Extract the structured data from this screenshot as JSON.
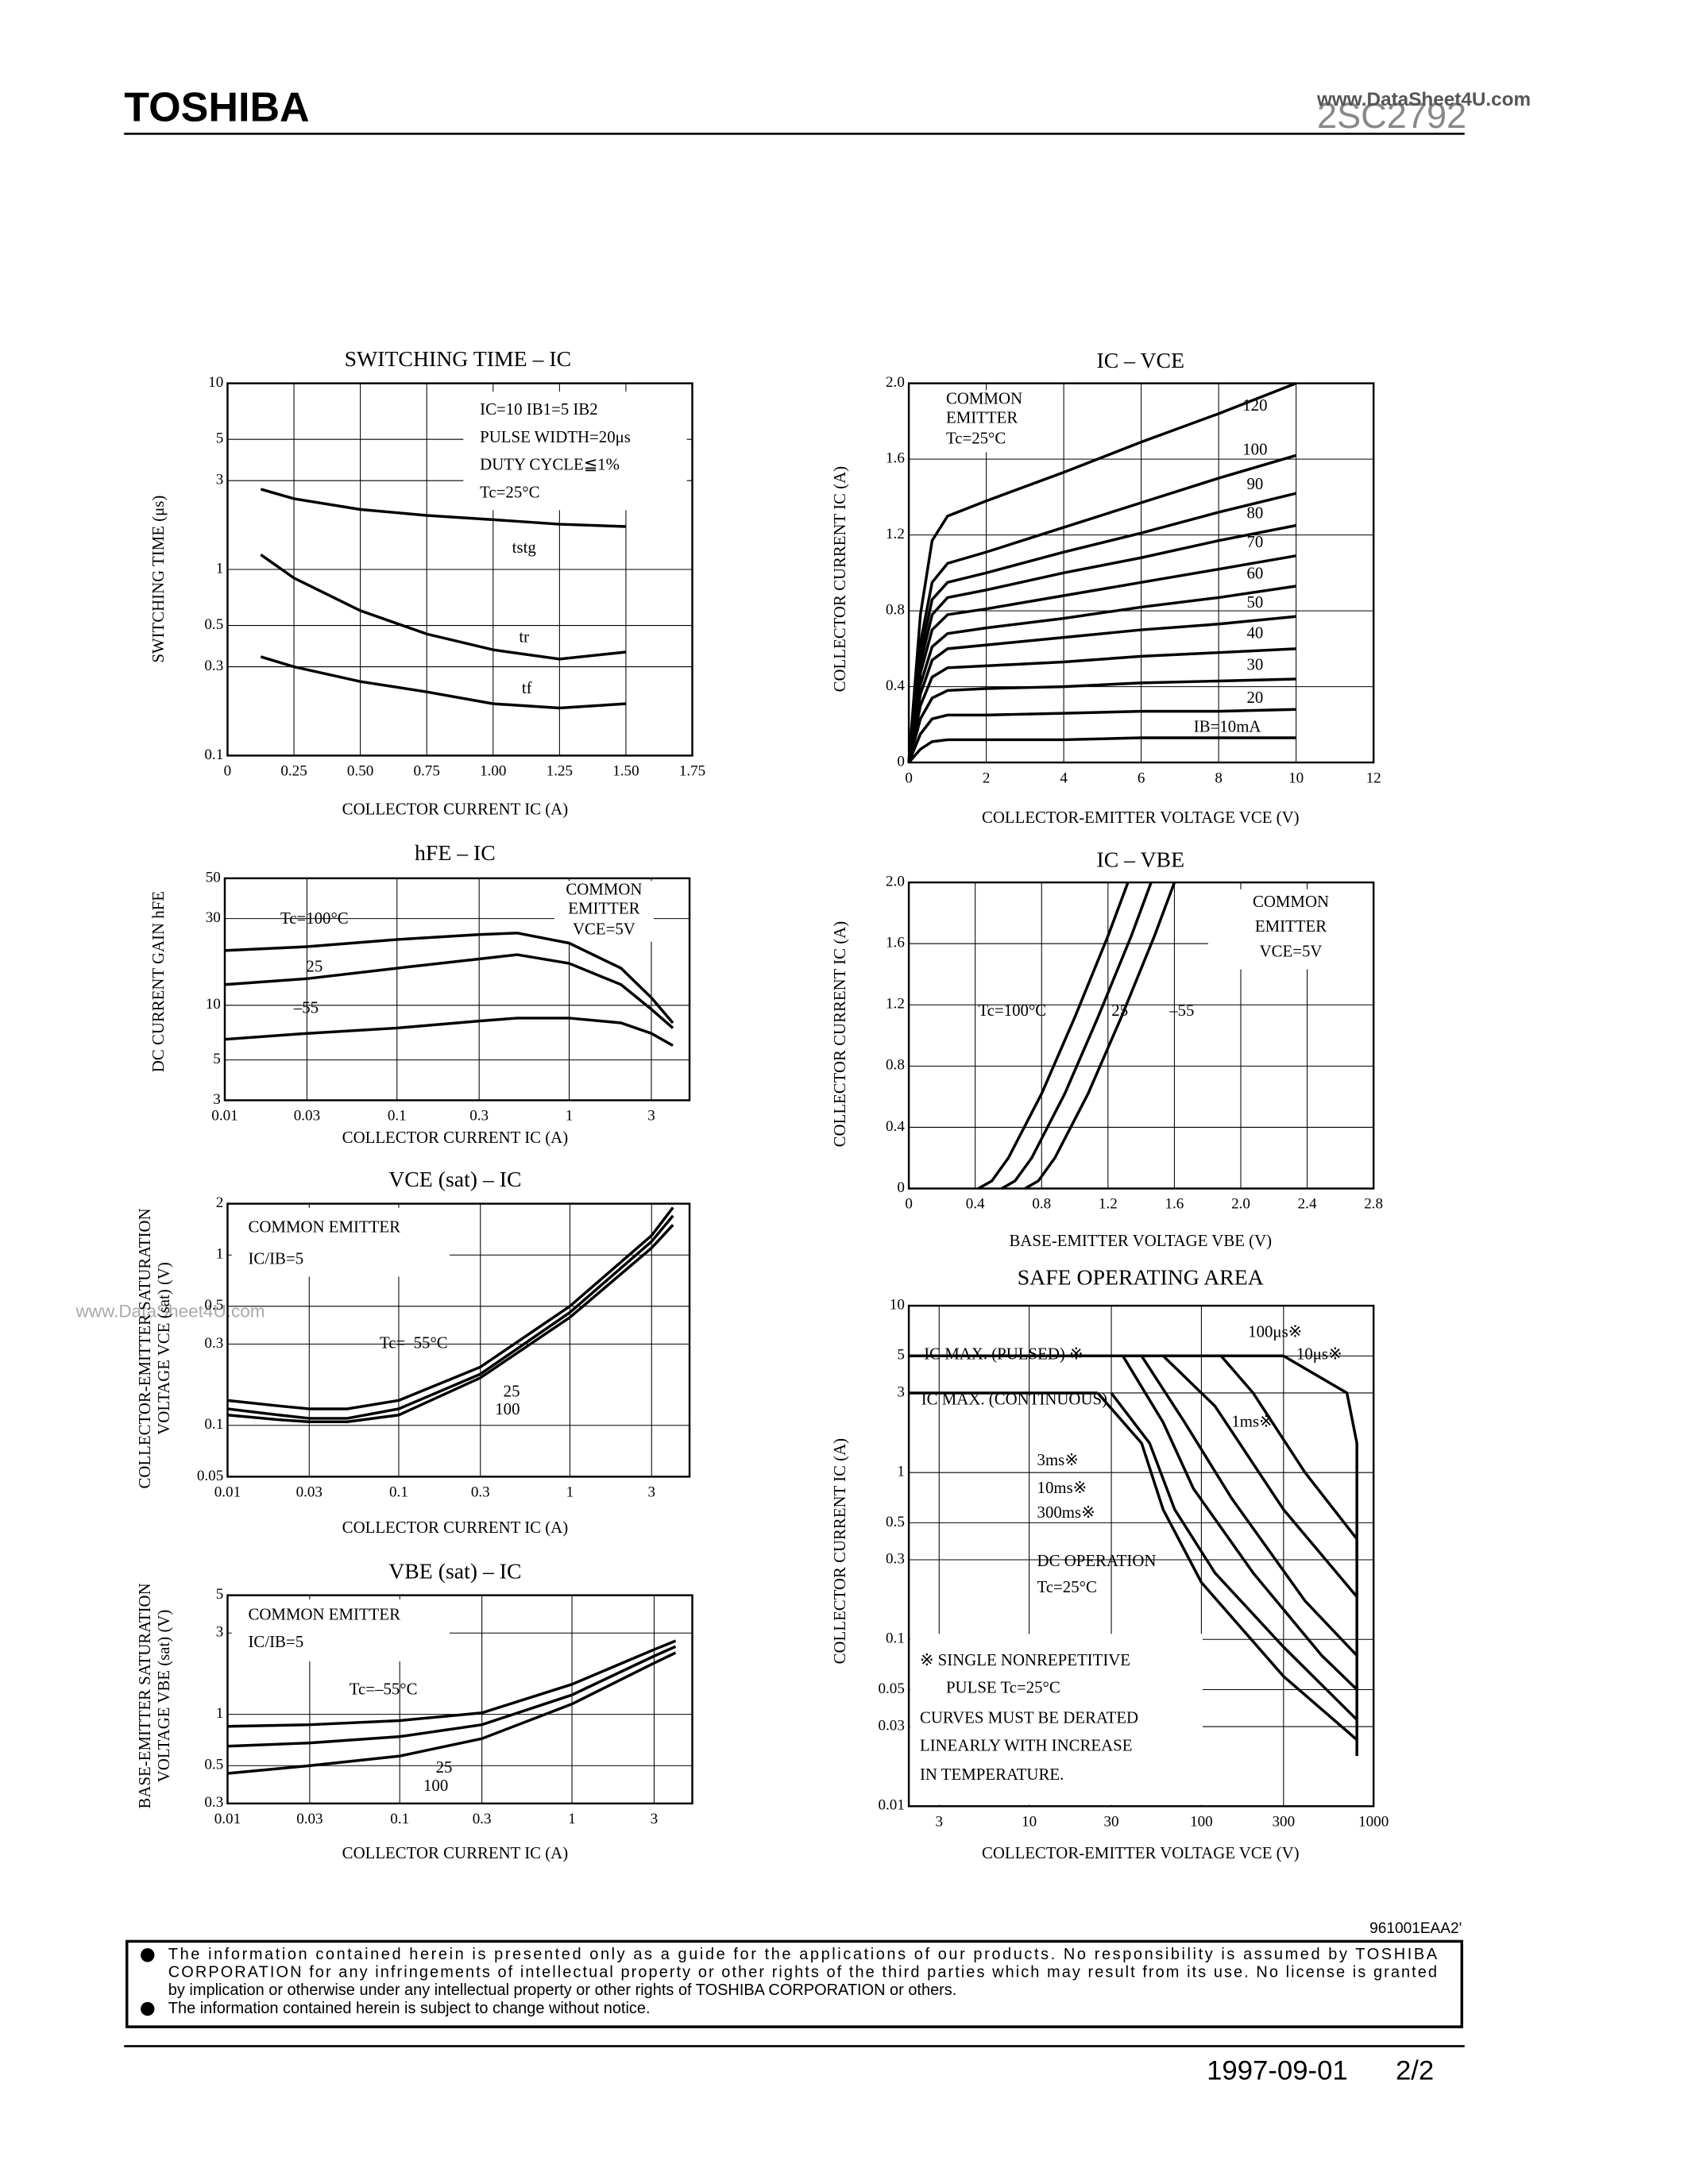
{
  "header": {
    "brand": "TOSHIBA",
    "part": "2SC2792",
    "watermark": "www.DataSheet4U.com"
  },
  "side_watermark": "www.DataSheet4U.com",
  "chart_data": [
    {
      "type": "line",
      "title": "SWITCHING TIME – IC",
      "xlabel": "COLLECTOR CURRENT  IC  (A)",
      "ylabel": "SWITCHING TIME  (μs)",
      "ylog": true,
      "xlim": [
        0,
        1.75
      ],
      "ylim": [
        0.1,
        10
      ],
      "xticks": [
        0,
        0.25,
        {
          "value": 0.5,
          "label": "0.50"
        },
        0.75,
        {
          "value": 1,
          "label": "1.00"
        },
        1.25,
        {
          "value": 1.5,
          "label": "1.50"
        },
        1.75
      ],
      "yticks": [
        0.1,
        0.3,
        0.5,
        1,
        3,
        5,
        10
      ],
      "grid": true,
      "color": "#000000",
      "x": [
        0.125,
        0.25,
        0.5,
        0.75,
        1.0,
        1.25,
        1.5
      ],
      "series": [
        {
          "name": "tstg",
          "values": [
            2.7,
            2.4,
            2.1,
            1.95,
            1.85,
            1.75,
            1.7
          ]
        },
        {
          "name": "tr",
          "values": [
            1.2,
            0.9,
            0.6,
            0.45,
            0.37,
            0.33,
            0.36
          ]
        },
        {
          "name": "tf",
          "values": [
            0.34,
            0.3,
            0.25,
            0.22,
            0.19,
            0.18,
            0.19
          ]
        }
      ],
      "annotations": [
        "IC=10 IB1=5 IB2",
        "PULSE WIDTH=20μs",
        "DUTY CYCLE≦1%",
        "Tc=25°C"
      ]
    },
    {
      "type": "line",
      "title": "IC – VCE",
      "xlabel": "COLLECTOR-EMITTER VOLTAGE  VCE  (V)",
      "ylabel": "COLLECTOR CURRENT  IC  (A)",
      "xlim": [
        0,
        12
      ],
      "ylim": [
        0,
        2
      ],
      "xticks": [
        0,
        2,
        4,
        6,
        8,
        10,
        12
      ],
      "yticks": [
        0,
        0.4,
        0.8,
        1.2,
        1.6,
        {
          "value": 2,
          "label": "2.0"
        }
      ],
      "grid": true,
      "color": "#000000",
      "x": [
        0,
        0.3,
        0.6,
        1,
        2,
        4,
        6,
        8,
        10
      ],
      "series": [
        {
          "name": "120",
          "values": [
            0,
            0.78,
            1.17,
            1.3,
            1.38,
            1.53,
            1.69,
            1.84,
            2.0
          ]
        },
        {
          "name": "100",
          "values": [
            0,
            0.63,
            0.95,
            1.05,
            1.11,
            1.24,
            1.37,
            1.5,
            1.62
          ]
        },
        {
          "name": "90",
          "values": [
            0,
            0.57,
            0.86,
            0.95,
            1.0,
            1.11,
            1.21,
            1.32,
            1.42
          ]
        },
        {
          "name": "80",
          "values": [
            0,
            0.52,
            0.78,
            0.87,
            0.91,
            1.0,
            1.08,
            1.17,
            1.25
          ]
        },
        {
          "name": "70",
          "values": [
            0,
            0.47,
            0.7,
            0.78,
            0.81,
            0.88,
            0.95,
            1.02,
            1.09
          ]
        },
        {
          "name": "60",
          "values": [
            0,
            0.41,
            0.61,
            0.68,
            0.71,
            0.76,
            0.82,
            0.87,
            0.93
          ]
        },
        {
          "name": "50",
          "values": [
            0,
            0.36,
            0.54,
            0.6,
            0.62,
            0.66,
            0.7,
            0.73,
            0.77
          ]
        },
        {
          "name": "40",
          "values": [
            0,
            0.3,
            0.45,
            0.5,
            0.51,
            0.53,
            0.56,
            0.58,
            0.6
          ]
        },
        {
          "name": "30",
          "values": [
            0,
            0.23,
            0.34,
            0.38,
            0.39,
            0.4,
            0.42,
            0.43,
            0.44
          ]
        },
        {
          "name": "20",
          "values": [
            0,
            0.15,
            0.23,
            0.25,
            0.25,
            0.26,
            0.27,
            0.27,
            0.28
          ]
        },
        {
          "name": "IB=10mA",
          "values": [
            0,
            0.07,
            0.11,
            0.12,
            0.12,
            0.12,
            0.13,
            0.13,
            0.13
          ]
        }
      ],
      "annotations": [
        "COMMON",
        "EMITTER",
        "Tc=25°C"
      ]
    },
    {
      "type": "line",
      "title": "hFE – IC",
      "xlabel": "COLLECTOR CURRENT  IC  (A)",
      "ylabel": "DC CURRENT GAIN  hFE",
      "xlog": true,
      "ylog": true,
      "xlim": [
        0.01,
        5
      ],
      "ylim": [
        3,
        50
      ],
      "xticks": [
        0.01,
        0.03,
        0.1,
        0.3,
        1,
        3
      ],
      "yticks": [
        3,
        5,
        10,
        30,
        50
      ],
      "grid": true,
      "color": "#000000",
      "x": [
        0.01,
        0.03,
        0.1,
        0.3,
        0.5,
        1,
        2,
        3,
        4
      ],
      "series": [
        {
          "name": "Tc=100°C",
          "values": [
            20,
            21,
            23,
            24.5,
            25,
            22,
            16,
            11,
            8
          ]
        },
        {
          "name": "25",
          "values": [
            13,
            14,
            16,
            18,
            19,
            17,
            13,
            9.5,
            7.5
          ]
        },
        {
          "name": "–55",
          "values": [
            6.5,
            7,
            7.5,
            8.2,
            8.5,
            8.5,
            8,
            7,
            6
          ]
        }
      ],
      "annotations": [
        "COMMON",
        "EMITTER",
        "VCE=5V"
      ]
    },
    {
      "type": "line",
      "title": "IC – VBE",
      "xlabel": "BASE-EMITTER VOLTAGE  VBE  (V)",
      "ylabel": "COLLECTOR CURRENT  IC  (A)",
      "xlim": [
        0,
        2.8
      ],
      "ylim": [
        0,
        2
      ],
      "xticks": [
        0,
        0.4,
        0.8,
        1.2,
        1.6,
        {
          "value": 2,
          "label": "2.0"
        },
        2.4,
        2.8
      ],
      "yticks": [
        0,
        0.4,
        0.8,
        1.2,
        1.6,
        {
          "value": 2,
          "label": "2.0"
        }
      ],
      "grid": true,
      "color": "#000000",
      "series": [
        {
          "name": "Tc=100°C",
          "x": [
            0.42,
            0.5,
            0.6,
            0.8,
            1.0,
            1.2,
            1.32
          ],
          "values": [
            0,
            0.05,
            0.2,
            0.62,
            1.12,
            1.65,
            2.0
          ]
        },
        {
          "name": "25",
          "x": [
            0.56,
            0.64,
            0.74,
            0.94,
            1.14,
            1.34,
            1.46
          ],
          "values": [
            0,
            0.05,
            0.2,
            0.62,
            1.12,
            1.65,
            2.0
          ]
        },
        {
          "name": "–55",
          "x": [
            0.7,
            0.78,
            0.88,
            1.08,
            1.28,
            1.48,
            1.6
          ],
          "values": [
            0,
            0.05,
            0.2,
            0.62,
            1.12,
            1.65,
            2.0
          ]
        }
      ],
      "annotations": [
        "COMMON",
        "EMITTER",
        "VCE=5V"
      ]
    },
    {
      "type": "line",
      "title": "VCE (sat) – IC",
      "xlabel": "COLLECTOR CURRENT  IC  (A)",
      "ylabel": [
        "COLLECTOR-EMITTER SATURATION",
        "VOLTAGE  VCE (sat)  (V)"
      ],
      "xlog": true,
      "ylog": true,
      "xlim": [
        0.01,
        5
      ],
      "ylim": [
        0.05,
        2
      ],
      "xticks": [
        0.01,
        0.03,
        0.1,
        0.3,
        1,
        3
      ],
      "yticks": [
        0.05,
        0.1,
        0.3,
        0.5,
        1,
        2
      ],
      "grid": true,
      "color": "#000000",
      "x": [
        0.01,
        0.02,
        0.03,
        0.05,
        0.1,
        0.3,
        1,
        3,
        4
      ],
      "series": [
        {
          "name": "Tc=–55°C",
          "values": [
            0.14,
            0.13,
            0.125,
            0.125,
            0.14,
            0.22,
            0.5,
            1.3,
            1.9
          ]
        },
        {
          "name": "25",
          "values": [
            0.125,
            0.115,
            0.11,
            0.11,
            0.125,
            0.2,
            0.46,
            1.2,
            1.7
          ]
        },
        {
          "name": "100",
          "values": [
            0.115,
            0.108,
            0.105,
            0.105,
            0.115,
            0.19,
            0.43,
            1.1,
            1.5
          ]
        }
      ],
      "annotations": [
        "COMMON EMITTER",
        "IC/IB=5"
      ]
    },
    {
      "type": "line",
      "title": "SAFE OPERATING AREA",
      "xlabel": "COLLECTOR-EMITTER VOLTAGE  VCE  (V)",
      "ylabel": "COLLECTOR CURRENT  IC  (A)",
      "xlog": true,
      "ylog": true,
      "xlim": [
        2,
        1000
      ],
      "ylim": [
        0.01,
        10
      ],
      "xticks": [
        3,
        10,
        30,
        100,
        300,
        1000
      ],
      "yticks": [
        0.01,
        0.03,
        0.05,
        0.1,
        0.3,
        0.5,
        1,
        3,
        5,
        10
      ],
      "grid": true,
      "color": "#000000",
      "series": [
        {
          "name": "IC MAX. (PULSED) ※",
          "x": [
            2,
            300
          ],
          "values": [
            5,
            5
          ]
        },
        {
          "name": "IC MAX. (CONTINUOUS)",
          "x": [
            2,
            25
          ],
          "values": [
            3,
            3
          ]
        },
        {
          "name": "100μs※",
          "x": [
            130,
            200,
            400,
            800,
            800
          ],
          "values": [
            5,
            3,
            1,
            0.4,
            0.02
          ]
        },
        {
          "name": "10μs※",
          "x": [
            300,
            700,
            800,
            800
          ],
          "values": [
            5,
            3,
            1.5,
            0.3
          ]
        },
        {
          "name": "1ms※",
          "x": [
            60,
            120,
            300,
            800
          ],
          "values": [
            5,
            2.5,
            0.6,
            0.18
          ]
        },
        {
          "name": "3ms※",
          "x": [
            45,
            80,
            150,
            400,
            800
          ],
          "values": [
            5,
            2,
            0.7,
            0.17,
            0.08
          ]
        },
        {
          "name": "10ms※",
          "x": [
            35,
            60,
            90,
            200,
            500,
            800
          ],
          "values": [
            5,
            2,
            0.8,
            0.25,
            0.08,
            0.05
          ]
        },
        {
          "name": "300ms※",
          "x": [
            30,
            50,
            70,
            120,
            300,
            800
          ],
          "values": [
            3,
            1.5,
            0.6,
            0.25,
            0.09,
            0.033
          ]
        },
        {
          "name": "DC OPERATION",
          "x": [
            25,
            45,
            60,
            100,
            300,
            800
          ],
          "values": [
            3,
            1.5,
            0.6,
            0.22,
            0.06,
            0.025
          ]
        }
      ],
      "annotations": [
        "Tc=25°C",
        "※ SINGLE NONREPETITIVE",
        "PULSE Tc=25°C",
        "CURVES MUST BE DERATED",
        "LINEARLY WITH INCREASE",
        "IN TEMPERATURE."
      ]
    },
    {
      "type": "line",
      "title": "VBE (sat) – IC",
      "xlabel": "COLLECTOR CURRENT  IC  (A)",
      "ylabel": [
        "BASE-EMITTER SATURATION",
        "VOLTAGE  VBE (sat)  (V)"
      ],
      "xlog": true,
      "ylog": true,
      "xlim": [
        0.01,
        5
      ],
      "ylim": [
        0.3,
        5
      ],
      "xticks": [
        0.01,
        0.03,
        0.1,
        0.3,
        1,
        3
      ],
      "yticks": [
        0.3,
        0.5,
        1,
        3,
        5
      ],
      "grid": true,
      "color": "#000000",
      "x": [
        0.01,
        0.03,
        0.1,
        0.3,
        1,
        3,
        4
      ],
      "series": [
        {
          "name": "Tc=–55°C",
          "values": [
            0.85,
            0.87,
            0.92,
            1.02,
            1.5,
            2.4,
            2.7
          ]
        },
        {
          "name": "25",
          "values": [
            0.65,
            0.68,
            0.74,
            0.87,
            1.3,
            2.2,
            2.5
          ]
        },
        {
          "name": "100",
          "values": [
            0.45,
            0.5,
            0.57,
            0.72,
            1.15,
            2.0,
            2.3
          ]
        }
      ],
      "annotations": [
        "COMMON EMITTER",
        "IC/IB=5"
      ]
    }
  ],
  "footer": {
    "code": "961001EAA2'",
    "notes": [
      "The information contained herein is presented only as a guide for the applications of our products. No responsibility is assumed by TOSHIBA",
      "CORPORATION for any infringements of intellectual property or other rights of the third parties which may result from its use. No license is granted",
      "by implication or otherwise under any intellectual property or other rights of TOSHIBA CORPORATION or others.",
      "The information contained herein is subject to change without notice."
    ],
    "date": "1997-09-01",
    "page": "2/2"
  }
}
